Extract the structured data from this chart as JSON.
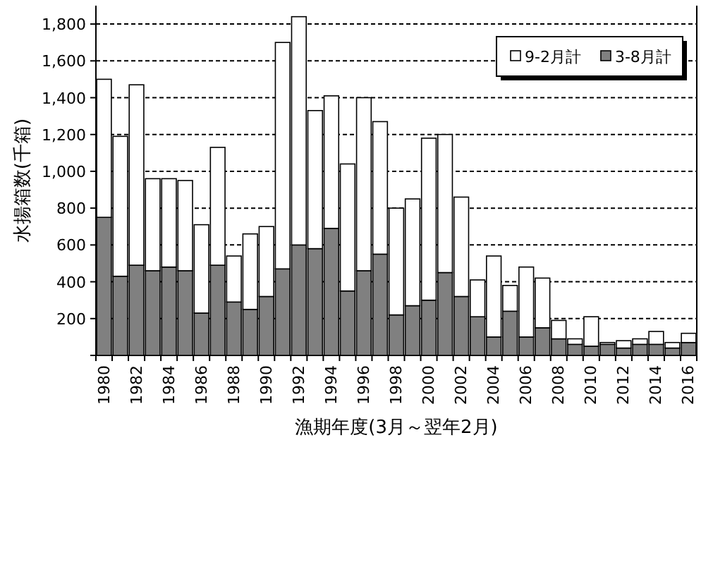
{
  "chart_data": {
    "type": "bar",
    "stacked": true,
    "xlabel": "漁期年度(3月～翌年2月)",
    "ylabel": "水揚箱数(千箱)",
    "categories": [
      "1980",
      null,
      "1982",
      null,
      "1984",
      null,
      "1986",
      null,
      "1988",
      null,
      "1990",
      null,
      "1992",
      null,
      "1994",
      null,
      "1996",
      null,
      "1998",
      null,
      "2000",
      null,
      "2002",
      null,
      "2004",
      null,
      "2006",
      null,
      "2008",
      null,
      "2010",
      null,
      "2012",
      null,
      "2014",
      null,
      "2016"
    ],
    "series": [
      {
        "name": "3-8月計",
        "color": "#808080",
        "values": [
          750,
          430,
          490,
          460,
          480,
          460,
          230,
          490,
          290,
          250,
          320,
          470,
          600,
          580,
          690,
          350,
          460,
          550,
          220,
          270,
          300,
          450,
          320,
          210,
          100,
          240,
          100,
          150,
          90,
          60,
          50,
          60,
          40,
          60,
          60,
          40,
          70
        ]
      },
      {
        "name": "9-2月計",
        "color": "#ffffff",
        "values": [
          750,
          760,
          980,
          500,
          480,
          490,
          480,
          640,
          250,
          410,
          380,
          1230,
          1240,
          750,
          720,
          690,
          940,
          720,
          580,
          580,
          880,
          750,
          540,
          200,
          440,
          140,
          380,
          270,
          100,
          30,
          160,
          10,
          40,
          30,
          70,
          30,
          50
        ]
      }
    ],
    "ylim": [
      0,
      1900
    ],
    "yticks": [
      {
        "value": 0,
        "label": null
      },
      200,
      400,
      600,
      800,
      {
        "value": 1000,
        "label": "1,000"
      },
      {
        "value": 1200,
        "label": "1,200"
      },
      {
        "value": 1400,
        "label": "1,400"
      },
      {
        "value": 1600,
        "label": "1,600"
      },
      {
        "value": 1800,
        "label": "1,800"
      }
    ],
    "grid": "y",
    "legend": "top right"
  }
}
